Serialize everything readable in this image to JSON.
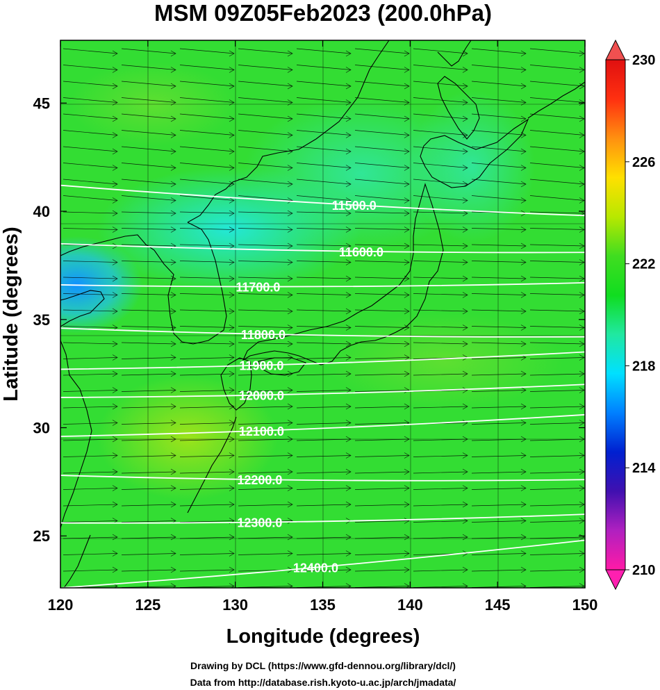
{
  "title": "MSM 09Z05Feb2023 (200.0hPa)",
  "xlabel": "Longitude (degrees)",
  "ylabel": "Latitude  (degrees)",
  "x_ticks": [
    "120",
    "125",
    "130",
    "135",
    "140",
    "145",
    "150"
  ],
  "y_ticks": [
    "25",
    "30",
    "35",
    "40",
    "45"
  ],
  "colorbar": {
    "min": 210,
    "max": 230,
    "tick_labels": [
      "230",
      "226",
      "222",
      "218",
      "214",
      "210"
    ],
    "tick_values": [
      230,
      226,
      222,
      218,
      214,
      210
    ],
    "colors": [
      "#ff1aa6",
      "#b020c0",
      "#4010b0",
      "#0020d0",
      "#0080ff",
      "#00e0ff",
      "#20e8a0",
      "#10dd20",
      "#40dd20",
      "#b8e800",
      "#ffe000",
      "#ff9010",
      "#ff3010",
      "#e01010"
    ]
  },
  "map": {
    "lon_range": [
      120,
      150
    ],
    "lat_range": [
      22.6,
      47.9
    ],
    "field_background": "#33dd33",
    "contours": [
      {
        "label": "11500.0",
        "lat_west": 41.2,
        "lat_east": 39.8,
        "label_lon": 136.8
      },
      {
        "label": "11600.0",
        "lat_west": 38.5,
        "lat_east": 38.1,
        "label_lon": 137.2
      },
      {
        "label": "11700.0",
        "lat_west": 36.6,
        "lat_east": 36.7,
        "label_lon": 131.3
      },
      {
        "label": "11800.0",
        "lat_west": 34.6,
        "lat_east": 34.2,
        "label_lon": 131.6
      },
      {
        "label": "11900.0",
        "lat_west": 32.7,
        "lat_east": 33.5,
        "label_lon": 131.5
      },
      {
        "label": "12000.0",
        "lat_west": 31.4,
        "lat_east": 32.0,
        "label_lon": 131.5
      },
      {
        "label": "12100.0",
        "lat_west": 29.6,
        "lat_east": 30.6,
        "label_lon": 131.5
      },
      {
        "label": "12200.0",
        "lat_west": 27.8,
        "lat_east": 27.6,
        "label_lon": 131.4
      },
      {
        "label": "12300.0",
        "lat_west": 25.6,
        "lat_east": 26.0,
        "label_lon": 131.4
      },
      {
        "label": "12400.0",
        "lat_west": 22.6,
        "lat_east": 24.8,
        "label_lon": 134.6
      }
    ]
  },
  "footer": {
    "line1": "Drawing by DCL (https://www.gfd-dennou.org/library/dcl/)",
    "line2": "Data from http://database.rish.kyoto-u.ac.jp/arch/jmadata/"
  }
}
